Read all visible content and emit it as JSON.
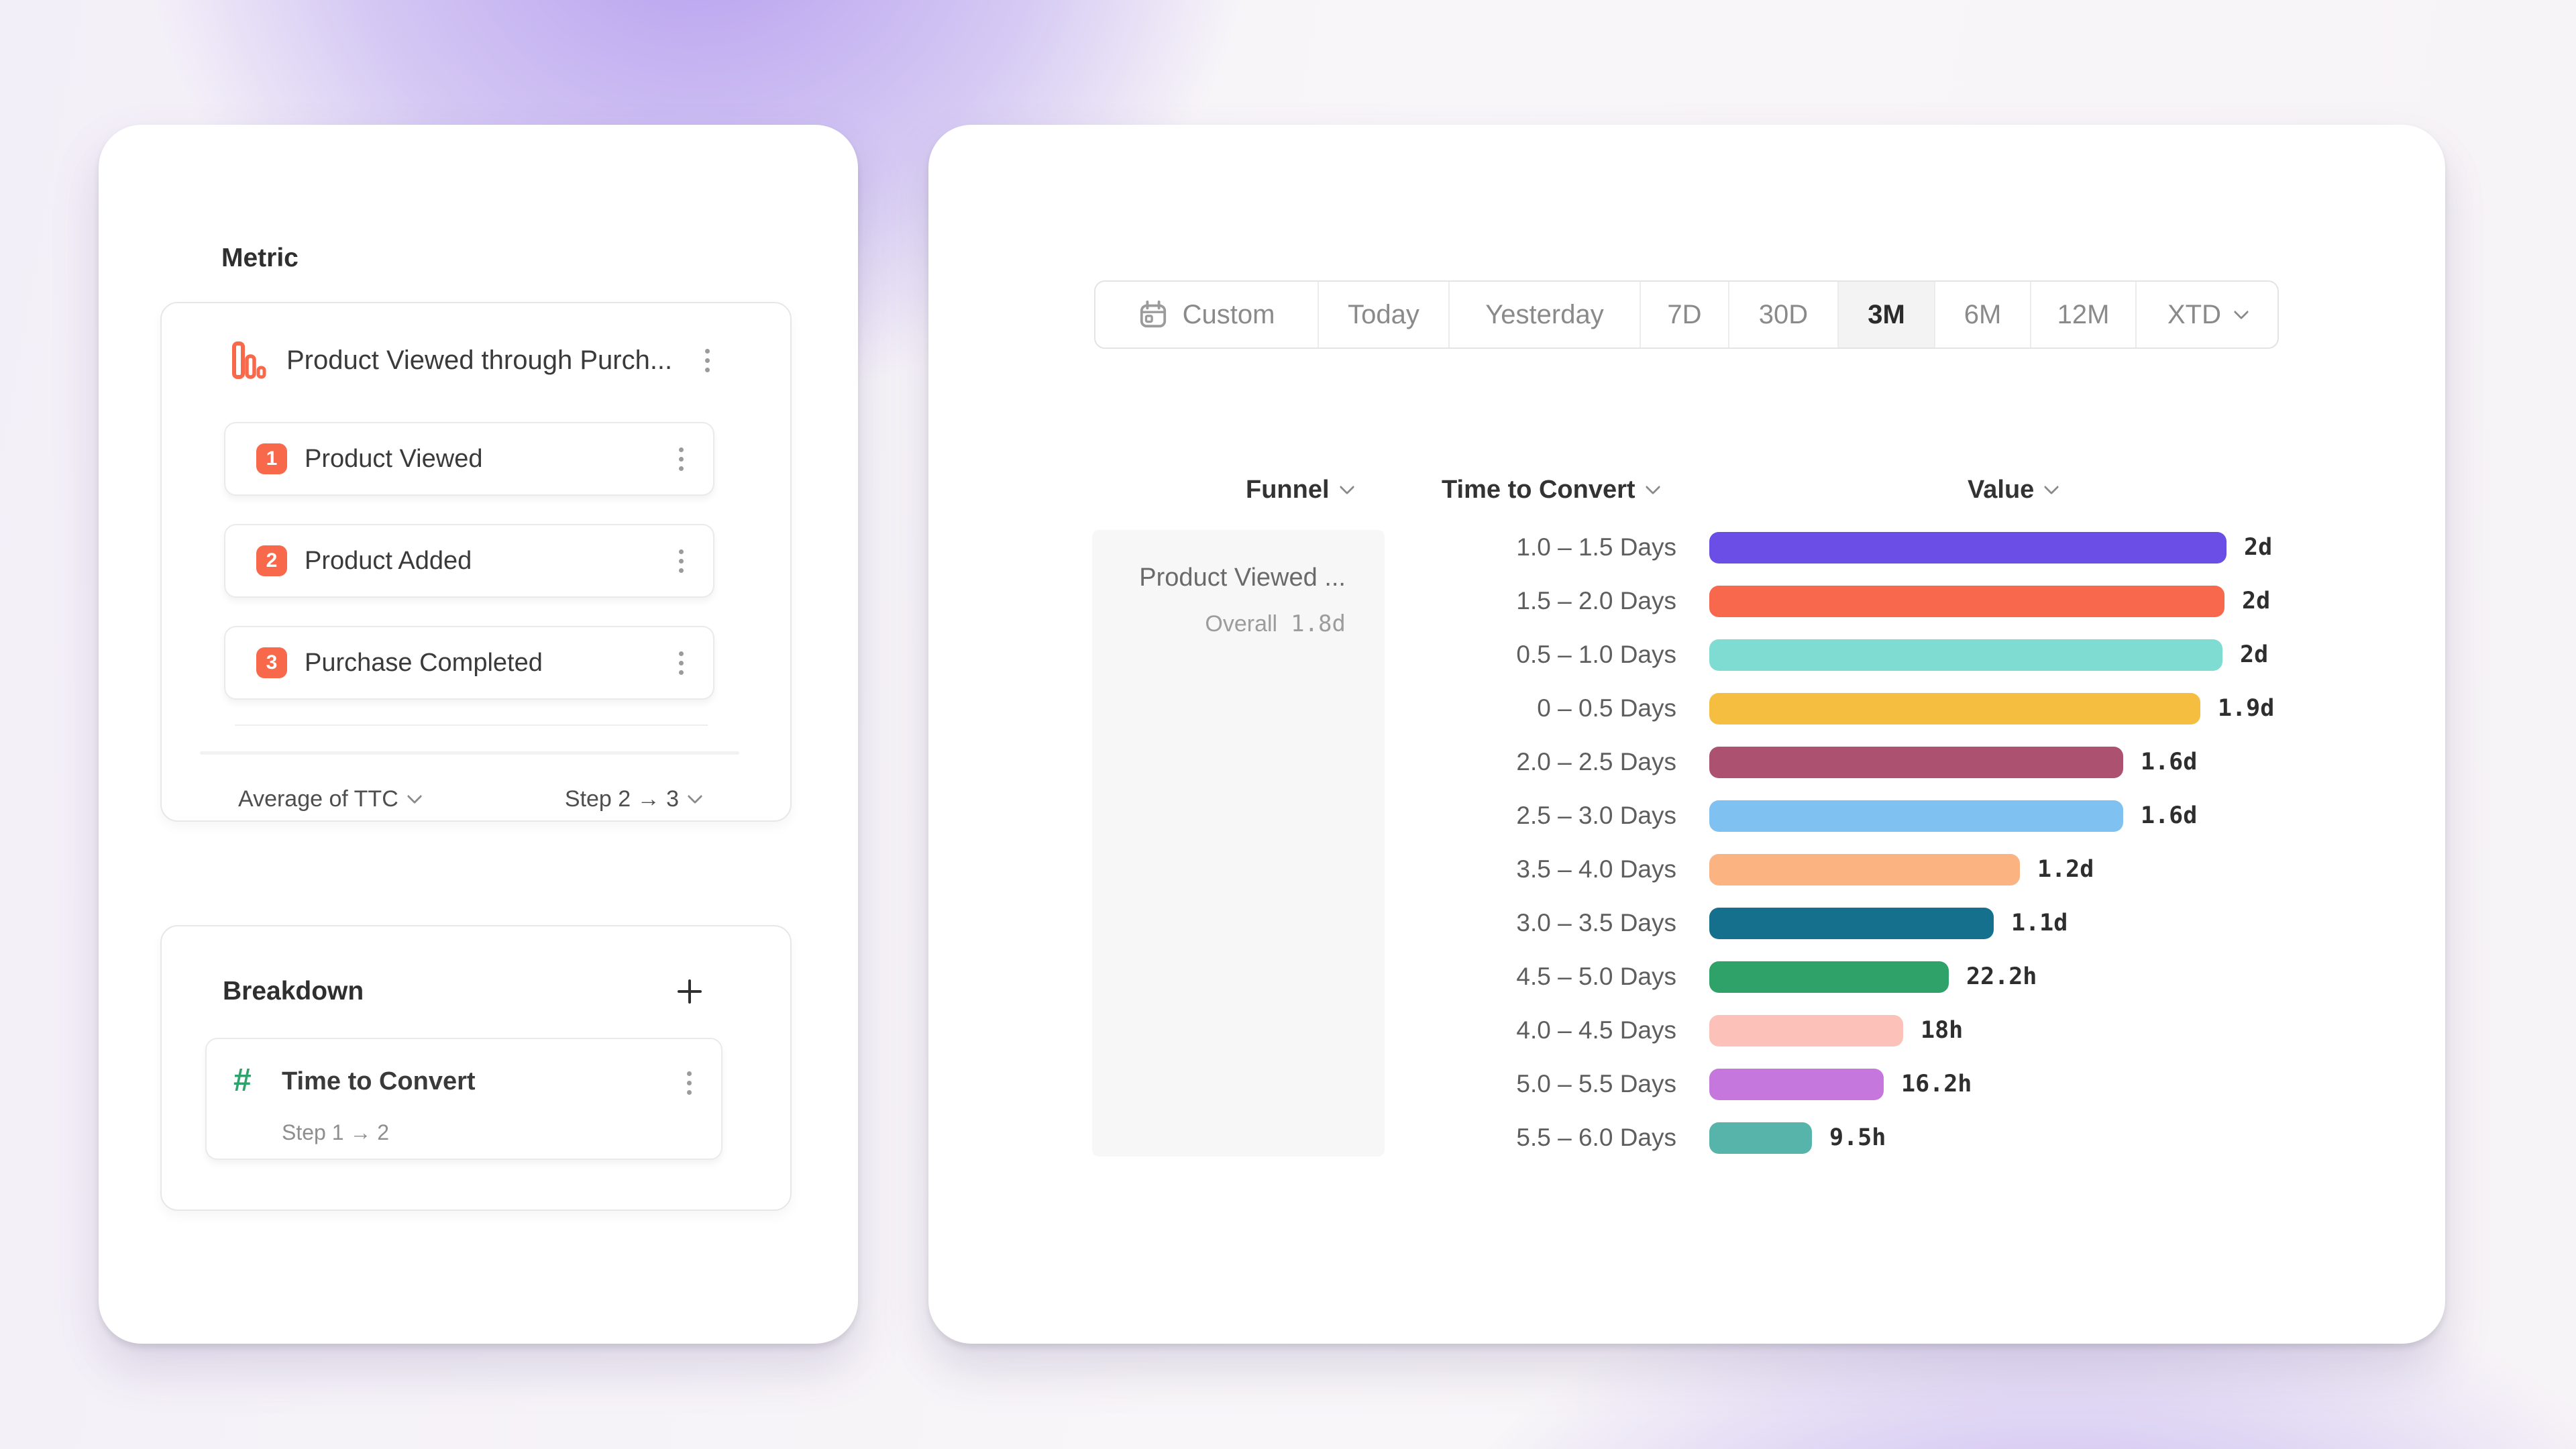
{
  "left_panel": {
    "metric": {
      "section_label": "Metric",
      "funnel_icon": "funnel-bars-icon",
      "funnel_title": "Product Viewed through Purch...",
      "steps": [
        {
          "number": "1",
          "label": "Product Viewed"
        },
        {
          "number": "2",
          "label": "Product Added"
        },
        {
          "number": "3",
          "label": "Purchase Completed"
        }
      ],
      "aggregation_label": "Average of TTC",
      "step_range_label": "Step 2 → 3"
    },
    "breakdown": {
      "section_label": "Breakdown",
      "add_icon": "plus-icon",
      "item": {
        "icon": "hash-icon",
        "icon_glyph": "#",
        "label": "Time to Convert",
        "sublabel": "Step 1 → 2"
      }
    }
  },
  "right_panel": {
    "date_range": {
      "options": [
        "Custom",
        "Today",
        "Yesterday",
        "7D",
        "30D",
        "3M",
        "6M",
        "12M",
        "XTD"
      ],
      "selected": "3M",
      "custom_icon": "calendar-icon",
      "xtd_has_chevron": true
    },
    "columns": [
      {
        "label": "Funnel"
      },
      {
        "label": "Time to Convert"
      },
      {
        "label": "Value"
      }
    ],
    "funnel_cell": {
      "title": "Product Viewed ...",
      "overall_label": "Overall",
      "overall_value": "1.8d"
    }
  },
  "chart_data": {
    "type": "bar",
    "orientation": "horizontal",
    "title": "Time to Convert breakdown",
    "xlabel": "Value",
    "ylabel": "Time to Convert",
    "axis_max_hours": 48,
    "overall_value": "1.8d",
    "categories": [
      "1.0 – 1.5 Days",
      "1.5 – 2.0 Days",
      "0.5 – 1.0 Days",
      "0 – 0.5 Days",
      "2.0 – 2.5 Days",
      "2.5 – 3.0 Days",
      "3.5 – 4.0 Days",
      "3.0 – 3.5 Days",
      "4.5 – 5.0 Days",
      "4.0 – 4.5 Days",
      "5.0 – 5.5 Days",
      "5.5 – 6.0 Days"
    ],
    "values_display": [
      "2d",
      "2d",
      "2d",
      "1.9d",
      "1.6d",
      "1.6d",
      "1.2d",
      "1.1d",
      "22.2h",
      "18h",
      "16.2h",
      "9.5h"
    ],
    "values_hours": [
      48,
      47.8,
      47.6,
      45.6,
      38.4,
      38.4,
      28.8,
      26.4,
      22.2,
      18,
      16.2,
      9.5
    ],
    "colors": [
      "#6B4EE6",
      "#F8684C",
      "#7EDCD2",
      "#F5BE40",
      "#AC5170",
      "#7FC1F1",
      "#FBB381",
      "#14708C",
      "#2EA269",
      "#FCC1B9",
      "#C677DD",
      "#57B4AB"
    ]
  },
  "theme": {
    "accent_orange": "#F8694B",
    "hash_green": "#2EA46C",
    "card_bg": "#FFFFFF",
    "funnel_cell_bg": "#F7F7F8",
    "selected_tab_bg": "#F3F3F3"
  }
}
